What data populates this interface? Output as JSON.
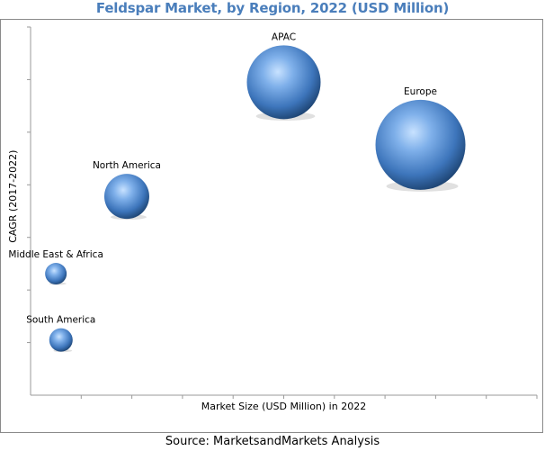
{
  "title": "Feldspar Market, by Region, 2022 (USD Million)",
  "source": "Source: MarketsandMarkets Analysis",
  "colors": {
    "title": "#4a7ebb",
    "bubble_light": "#9cc6f2",
    "bubble_mid": "#4f88cc",
    "bubble_dark": "#1f4f86"
  },
  "chart_data": {
    "type": "bubble",
    "title": "Feldspar Market, by Region, 2022 (USD Million)",
    "xlabel": "Market Size (USD Million) in 2022",
    "ylabel": "CAGR (2017-2022)",
    "grid": false,
    "tick_labels": false,
    "points": [
      {
        "label": "APAC",
        "x": 0.5,
        "y": 0.85,
        "size": 0.82
      },
      {
        "label": "Europe",
        "x": 0.77,
        "y": 0.68,
        "size": 1.0
      },
      {
        "label": "North America",
        "x": 0.19,
        "y": 0.54,
        "size": 0.5
      },
      {
        "label": "Middle East & Africa",
        "x": 0.05,
        "y": 0.33,
        "size": 0.24
      },
      {
        "label": "South America",
        "x": 0.06,
        "y": 0.15,
        "size": 0.26
      }
    ]
  }
}
